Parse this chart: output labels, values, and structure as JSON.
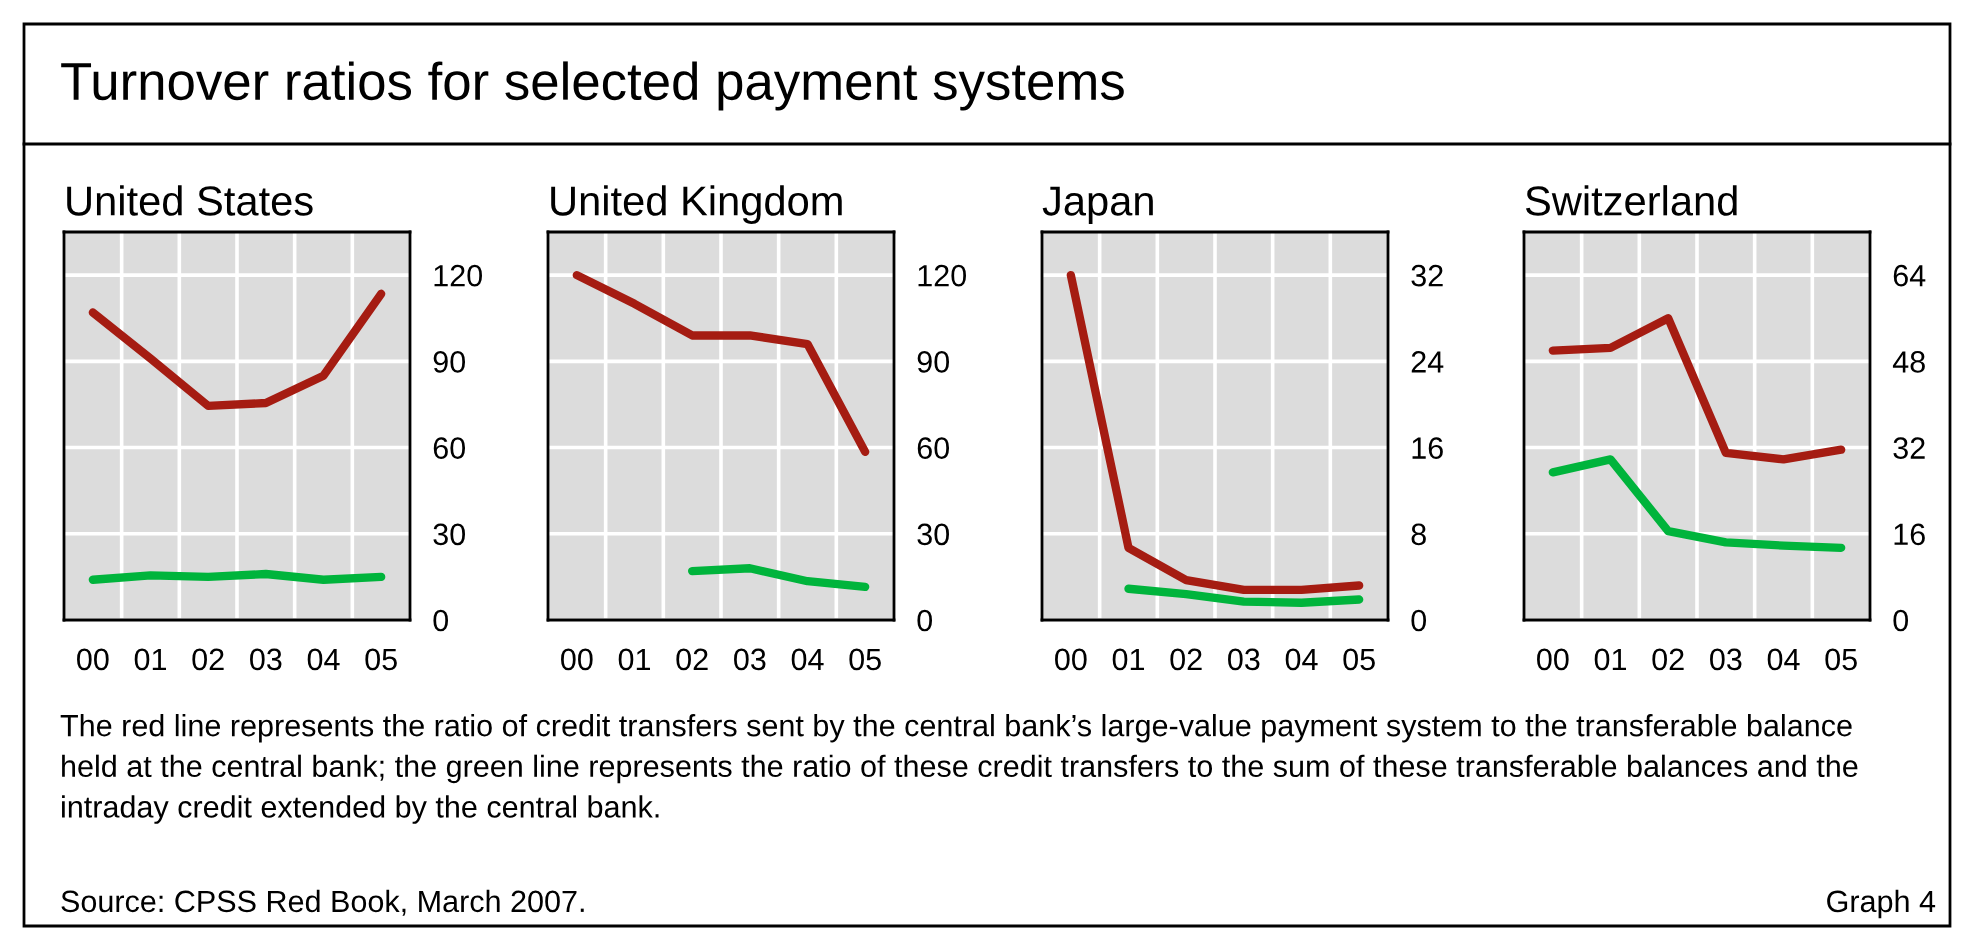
{
  "chart_data": [
    {
      "type": "line",
      "title": "United States",
      "categories": [
        "00",
        "01",
        "02",
        "03",
        "04",
        "05"
      ],
      "ylim": [
        0,
        135
      ],
      "yticks": [
        0,
        30,
        60,
        90,
        120
      ],
      "grid": true,
      "annotations": [
        "Turnover ratios for selected payment systems",
        "The red line represents the ratio of credit transfers sent by the central bank’s large-value payment system to the transferable balance held at the central bank; the green line represents the ratio of these credit transfers to the sum of these transferable balances and the intraday credit extended by the central bank.",
        "Source: CPSS Red Book, March 2007.",
        "Graph 4"
      ],
      "series": [
        {
          "color": "#a51c12",
          "values": [
            107,
            91,
            74.5,
            75.5,
            85,
            113.5
          ]
        },
        {
          "color": "#00b43c",
          "values": [
            14,
            15.5,
            15,
            16,
            14,
            15
          ]
        }
      ]
    },
    {
      "type": "line",
      "title": "United Kingdom",
      "categories": [
        "00",
        "01",
        "02",
        "03",
        "04",
        "05"
      ],
      "ylim": [
        0,
        135
      ],
      "yticks": [
        0,
        30,
        60,
        90,
        120
      ],
      "grid": true,
      "series": [
        {
          "color": "#a51c12",
          "values": [
            120,
            110,
            99,
            99,
            96,
            58.5
          ]
        },
        {
          "color": "#00b43c",
          "values": [
            null,
            null,
            17,
            18,
            13.5,
            11.5
          ]
        }
      ]
    },
    {
      "type": "line",
      "title": "Japan",
      "categories": [
        "00",
        "01",
        "02",
        "03",
        "04",
        "05"
      ],
      "ylim": [
        0,
        36
      ],
      "yticks": [
        0,
        8,
        16,
        24,
        32
      ],
      "grid": true,
      "series": [
        {
          "color": "#a51c12",
          "values": [
            32,
            6.7,
            3.7,
            2.8,
            2.8,
            3.2
          ]
        },
        {
          "color": "#00b43c",
          "values": [
            null,
            2.9,
            2.4,
            1.7,
            1.6,
            1.9
          ]
        }
      ]
    },
    {
      "type": "line",
      "title": "Switzerland",
      "categories": [
        "00",
        "01",
        "02",
        "03",
        "04",
        "05"
      ],
      "ylim": [
        0,
        72
      ],
      "yticks": [
        0,
        16,
        32,
        48,
        64
      ],
      "grid": true,
      "series": [
        {
          "color": "#a51c12",
          "values": [
            50,
            50.5,
            56,
            31,
            29.8,
            31.6
          ]
        },
        {
          "color": "#00b43c",
          "values": [
            27.4,
            29.8,
            16.5,
            14.4,
            13.8,
            13.4
          ]
        }
      ]
    }
  ]
}
